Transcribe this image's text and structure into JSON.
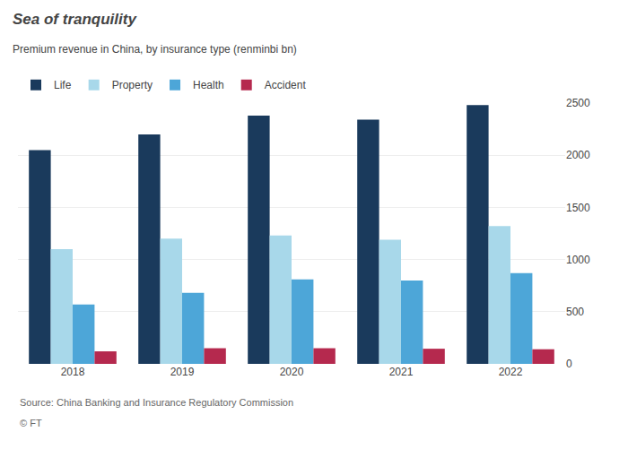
{
  "chart_data": {
    "type": "bar",
    "title": "Sea of tranquility",
    "subtitle": "Premium revenue in China, by insurance type (renminbi bn)",
    "categories": [
      "2018",
      "2019",
      "2020",
      "2021",
      "2022"
    ],
    "series": [
      {
        "name": "Life",
        "color": "#1a3a5c",
        "values": [
          2050,
          2200,
          2380,
          2340,
          2480
        ]
      },
      {
        "name": "Property",
        "color": "#a8d8ea",
        "values": [
          1100,
          1200,
          1230,
          1190,
          1320
        ]
      },
      {
        "name": "Health",
        "color": "#4da6d8",
        "values": [
          570,
          680,
          810,
          800,
          870
        ]
      },
      {
        "name": "Accident",
        "color": "#b5294e",
        "values": [
          120,
          150,
          150,
          145,
          140
        ]
      }
    ],
    "ylim": [
      0,
      2500
    ],
    "yticks": [
      0,
      500,
      1000,
      1500,
      2000,
      2500
    ],
    "grid": true,
    "legend": "top",
    "annotations": [
      "Source: China Banking and Insurance Regulatory Commission",
      "© FT"
    ]
  }
}
